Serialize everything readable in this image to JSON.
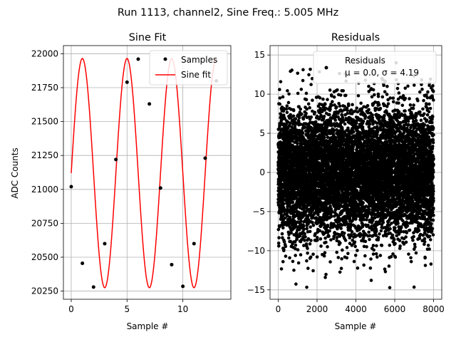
{
  "suptitle": "Run 1113, channel2, Sine Freq.: 5.005 MHz",
  "chart_data": [
    {
      "type": "line",
      "title": "Sine Fit",
      "xlabel": "Sample #",
      "ylabel": "ADC Counts",
      "xlim": [
        -0.7,
        14.3
      ],
      "ylim": [
        20190,
        22060
      ],
      "xticks": [
        0,
        5,
        10
      ],
      "yticks": [
        20250,
        20500,
        20750,
        21000,
        21250,
        21500,
        21750,
        22000
      ],
      "grid": true,
      "legend_loc": "upper right",
      "samples": {
        "name": "Samples",
        "color": "#000000",
        "x": [
          0,
          1,
          2,
          3,
          4,
          5,
          6,
          7,
          8,
          9,
          10,
          11,
          12,
          13
        ],
        "y": [
          21020,
          20455,
          20280,
          20600,
          21220,
          21790,
          21960,
          21630,
          21010,
          20445,
          20285,
          20600,
          21230,
          21800
        ]
      },
      "fit": {
        "name": "Sine fit",
        "color": "#ff0000",
        "mean": 21120,
        "amplitude": 845,
        "period": 4.0,
        "phase_deg": 0
      }
    },
    {
      "type": "scatter",
      "title": "Residuals",
      "xlabel": "Sample #",
      "ylabel": "",
      "xlim": [
        -420,
        8420
      ],
      "ylim": [
        -16.2,
        16.2
      ],
      "xticks": [
        0,
        2000,
        4000,
        6000,
        8000
      ],
      "yticks": [
        -15,
        -10,
        -5,
        0,
        5,
        10,
        15
      ],
      "grid": true,
      "legend_loc": "upper right",
      "series_name": "Residuals",
      "legend_text_2": "μ = 0.0, σ = 4.19",
      "mean": 0.0,
      "sigma": 4.19,
      "n_points": 8000,
      "color": "#000000"
    }
  ]
}
